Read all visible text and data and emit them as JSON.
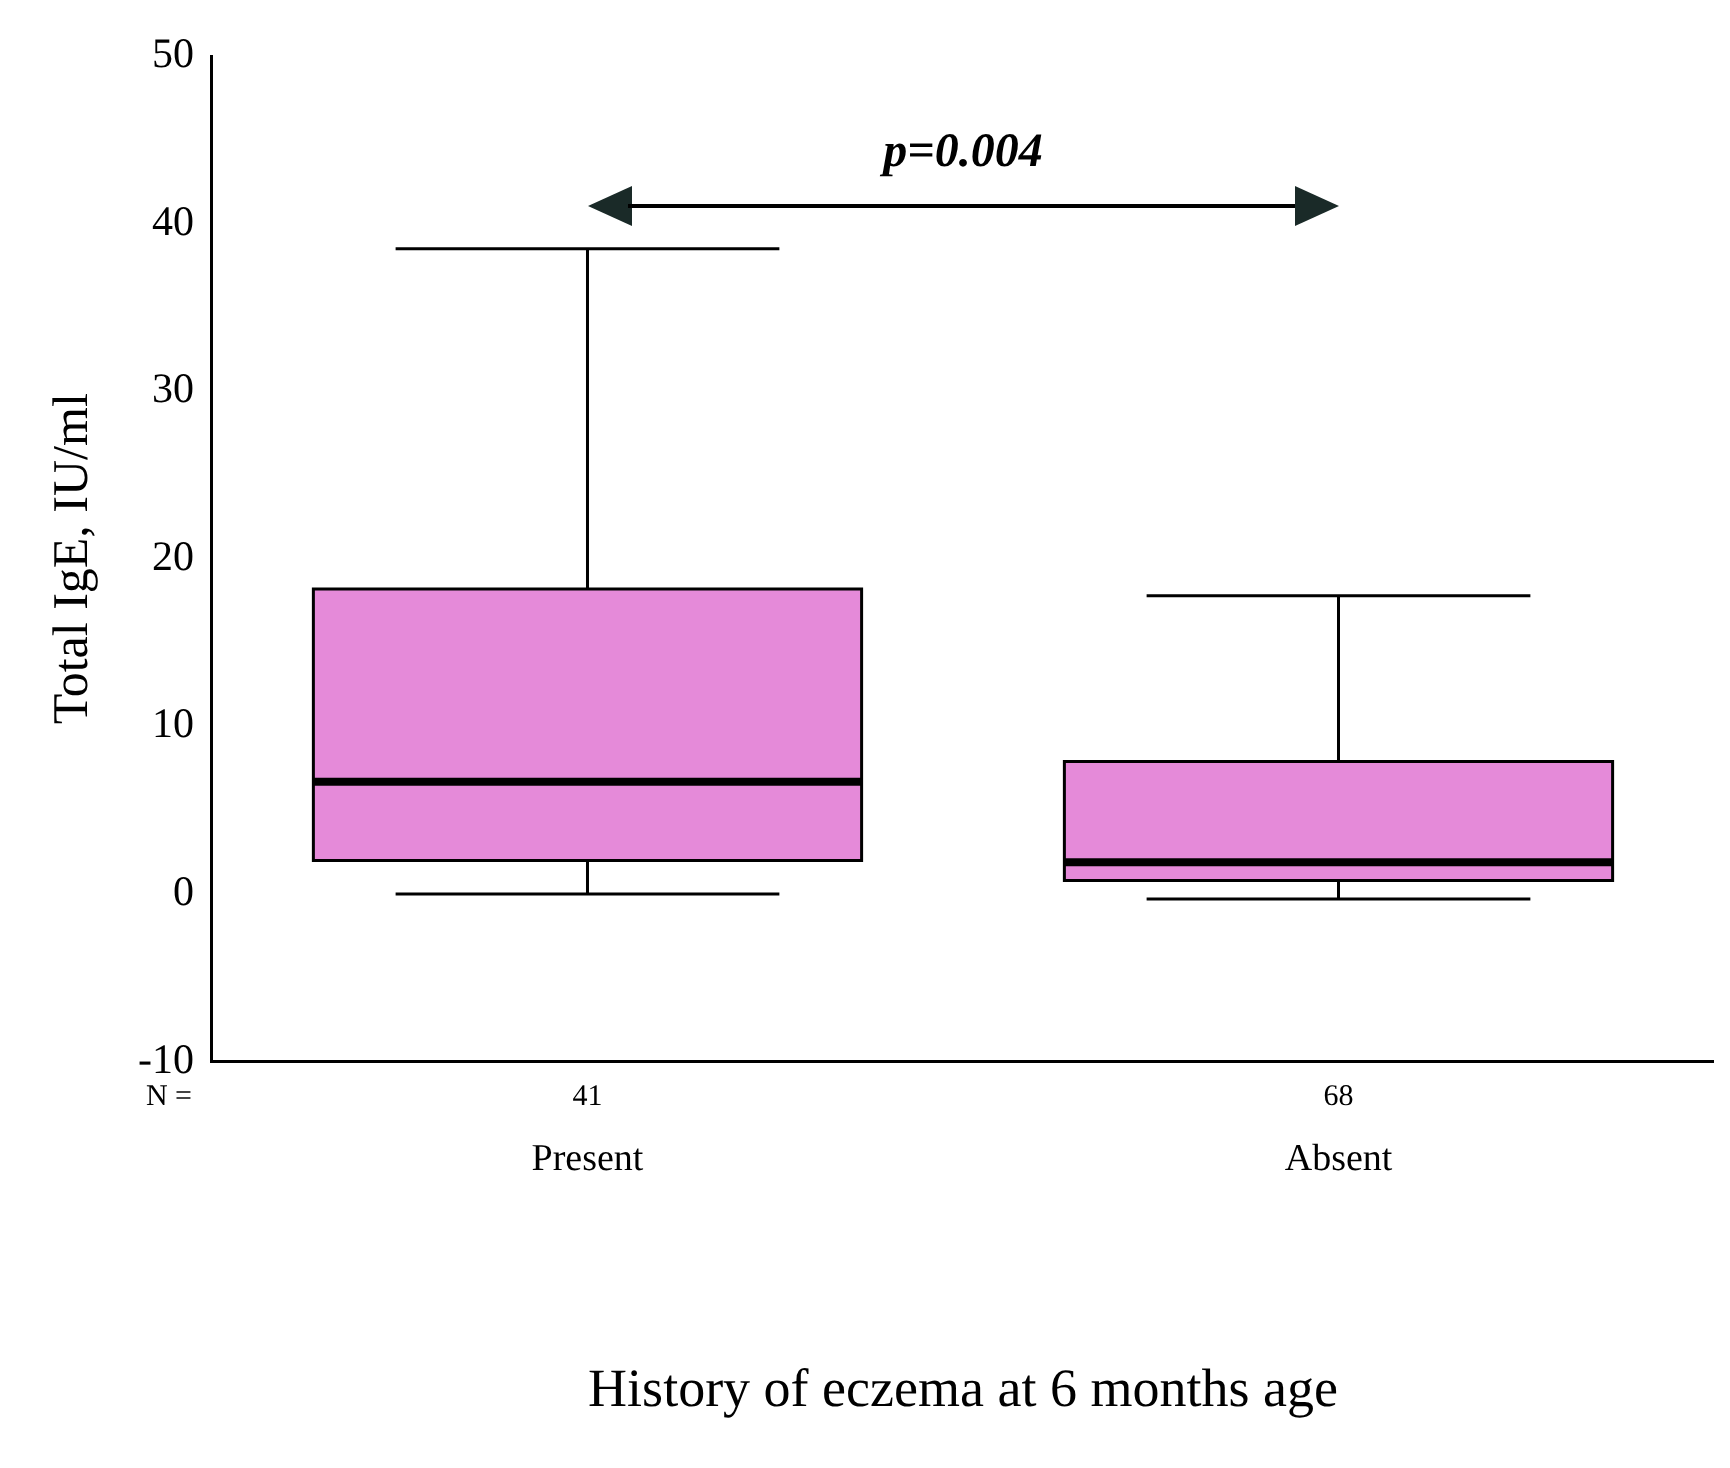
{
  "chart_data": {
    "type": "box",
    "xlabel": "History of eczema at 6 months age",
    "ylabel": "Total IgE, IU/ml",
    "categories": [
      "Present",
      "Absent"
    ],
    "series": [
      {
        "color": "#e58ad9",
        "boxes": [
          {
            "low": 0,
            "q1": 2,
            "median": 6.7,
            "q3": 18.2,
            "high": 38.5
          },
          {
            "low": -0.3,
            "q1": 0.8,
            "median": 1.9,
            "q3": 7.9,
            "high": 17.8
          }
        ]
      }
    ],
    "ylim": [
      -10,
      50
    ],
    "yticks": [
      -10,
      0,
      10,
      20,
      30,
      40,
      50
    ],
    "grid": false,
    "legend": false,
    "annotations": [
      "N =",
      "41",
      "68",
      "p=0.004"
    ]
  }
}
